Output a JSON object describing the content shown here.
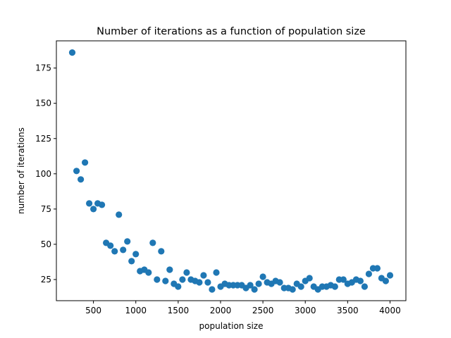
{
  "chart_data": {
    "type": "scatter",
    "title": "Number of iterations as a function of population size",
    "xlabel": "population size",
    "ylabel": "number of iterations",
    "xlim": [
      62.5,
      4187.5
    ],
    "ylim": [
      10,
      194.3
    ],
    "xticks": [
      500,
      1000,
      1500,
      2000,
      2500,
      3000,
      3500,
      4000
    ],
    "yticks": [
      25,
      50,
      75,
      100,
      125,
      150,
      175
    ],
    "grid": false,
    "marker_color": "#1f77b4",
    "points": [
      [
        250,
        186
      ],
      [
        300,
        102
      ],
      [
        350,
        96
      ],
      [
        400,
        108
      ],
      [
        450,
        79
      ],
      [
        500,
        75
      ],
      [
        550,
        79
      ],
      [
        600,
        78
      ],
      [
        650,
        51
      ],
      [
        700,
        49
      ],
      [
        750,
        45
      ],
      [
        800,
        71
      ],
      [
        850,
        46
      ],
      [
        900,
        52
      ],
      [
        950,
        38
      ],
      [
        1000,
        43
      ],
      [
        1050,
        31
      ],
      [
        1100,
        32
      ],
      [
        1150,
        30
      ],
      [
        1200,
        51
      ],
      [
        1250,
        25
      ],
      [
        1300,
        45
      ],
      [
        1350,
        24
      ],
      [
        1400,
        32
      ],
      [
        1450,
        22
      ],
      [
        1500,
        20
      ],
      [
        1550,
        25
      ],
      [
        1600,
        30
      ],
      [
        1650,
        25
      ],
      [
        1700,
        24
      ],
      [
        1750,
        23
      ],
      [
        1800,
        28
      ],
      [
        1850,
        23
      ],
      [
        1900,
        18
      ],
      [
        1950,
        30
      ],
      [
        2000,
        20
      ],
      [
        2050,
        22
      ],
      [
        2100,
        21
      ],
      [
        2150,
        21
      ],
      [
        2200,
        21
      ],
      [
        2250,
        21
      ],
      [
        2300,
        19
      ],
      [
        2350,
        21
      ],
      [
        2400,
        18
      ],
      [
        2450,
        22
      ],
      [
        2500,
        27
      ],
      [
        2550,
        23
      ],
      [
        2600,
        22
      ],
      [
        2650,
        24
      ],
      [
        2700,
        23
      ],
      [
        2750,
        19
      ],
      [
        2800,
        19
      ],
      [
        2850,
        18
      ],
      [
        2900,
        22
      ],
      [
        2950,
        20
      ],
      [
        3000,
        24
      ],
      [
        3050,
        26
      ],
      [
        3100,
        20
      ],
      [
        3150,
        18
      ],
      [
        3200,
        20
      ],
      [
        3250,
        20
      ],
      [
        3300,
        21
      ],
      [
        3350,
        20
      ],
      [
        3400,
        25
      ],
      [
        3450,
        25
      ],
      [
        3500,
        22
      ],
      [
        3550,
        23
      ],
      [
        3600,
        25
      ],
      [
        3650,
        24
      ],
      [
        3700,
        20
      ],
      [
        3750,
        29
      ],
      [
        3800,
        33
      ],
      [
        3850,
        33
      ],
      [
        3900,
        26
      ],
      [
        3950,
        24
      ],
      [
        4000,
        28
      ]
    ]
  }
}
